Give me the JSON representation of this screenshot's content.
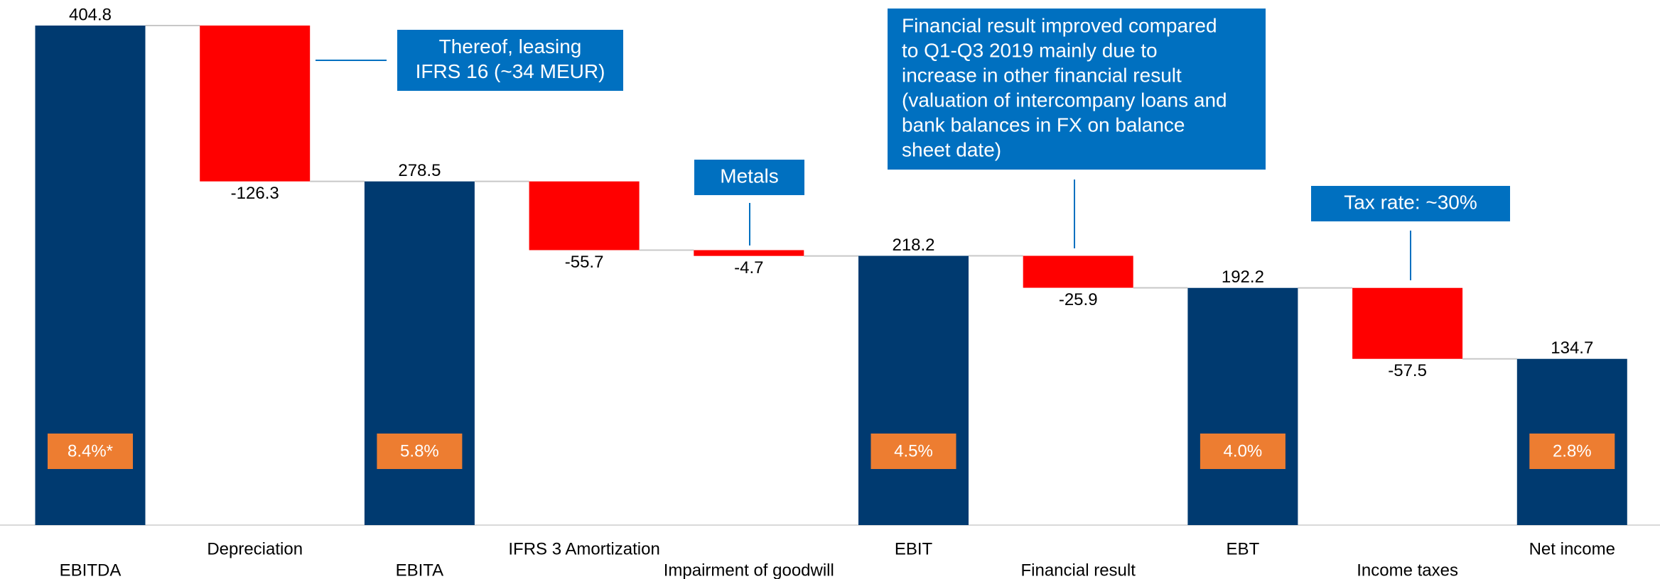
{
  "chart_data": {
    "type": "waterfall",
    "categories": [
      "EBITDA",
      "Depreciation",
      "EBITA",
      "IFRS 3 Amortization",
      "Impairment of goodwill",
      "EBIT",
      "Financial result",
      "EBT",
      "Income taxes",
      "Net income"
    ],
    "values": [
      404.8,
      -126.3,
      278.5,
      -55.7,
      -4.7,
      218.2,
      -25.9,
      192.2,
      -57.5,
      134.7
    ],
    "is_total": [
      true,
      false,
      true,
      false,
      false,
      true,
      false,
      true,
      false,
      true
    ],
    "margin_labels": [
      "8.4%*",
      null,
      "5.8%",
      null,
      null,
      "4.5%",
      null,
      "4.0%",
      null,
      "2.8%"
    ],
    "ylim": [
      0,
      404.8
    ],
    "colors": {
      "total": "#003a70",
      "decrease": "#ff0000",
      "margin": "#ed7d31",
      "callout": "#0070c0",
      "connector": "#c8c8c8"
    },
    "annotations": [
      [
        "Thereof, leasing",
        "IFRS 16 (~34 MEUR)"
      ],
      [
        "Metals"
      ],
      [
        "Financial result improved compared",
        "to Q1-Q3 2019 mainly due to",
        "increase in other financial result",
        "(valuation of intercompany loans and",
        "bank balances in FX on balance",
        "sheet date)"
      ],
      [
        "Tax rate: ~30%"
      ]
    ]
  }
}
